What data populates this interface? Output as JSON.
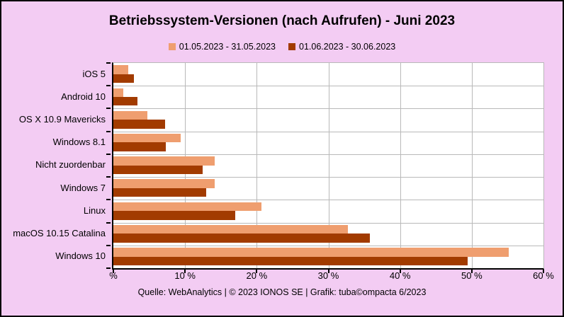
{
  "page": {
    "background_color": "#F3CCF3",
    "frame_border_color": "#000000"
  },
  "chart_data": {
    "type": "bar",
    "orientation": "horizontal",
    "title": "Betriebssystem-Versionen (nach Aufrufen) - Juni 2023",
    "categories": [
      "iOS 5",
      "Android 10",
      "OS X 10.9 Mavericks",
      "Windows 8.1",
      "Nicht zuordenbar",
      "Windows 7",
      "Linux",
      "macOS 10.15 Catalina",
      "Windows 10"
    ],
    "series": [
      {
        "name": "01.05.2023 - 31.05.2023",
        "color": "#EF9E6F",
        "values": [
          2.1,
          1.4,
          4.7,
          9.4,
          14.1,
          14.1,
          20.7,
          32.7,
          55.2
        ]
      },
      {
        "name": "01.06.2023 - 30.06.2023",
        "color": "#A23B00",
        "values": [
          2.9,
          3.4,
          7.2,
          7.3,
          12.5,
          12.9,
          17.0,
          35.8,
          49.4
        ]
      }
    ],
    "x_axis": {
      "min": 0,
      "max": 60,
      "step": 10,
      "tick_labels": [
        "%",
        "10 %",
        "20 %",
        "30 %",
        "40 %",
        "50 %",
        "60 %"
      ]
    },
    "grid": true,
    "gridline_color": "#B9B9B9",
    "plot_background": "#FFFFFF",
    "legend_position": "top"
  },
  "footer": {
    "caption": "Quelle: WebAnalytics | © 2023 IONOS SE | Grafik: tuba©ompacta 6/2023"
  }
}
